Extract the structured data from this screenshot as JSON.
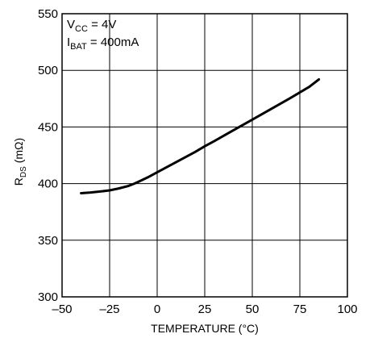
{
  "chart_data": {
    "type": "line",
    "title": "",
    "xlabel": "TEMPERATURE (°C)",
    "ylabel": {
      "main": "R",
      "sub": "DS",
      "unit": " (mΩ)"
    },
    "xlim": [
      -50,
      100
    ],
    "ylim": [
      300,
      550
    ],
    "xticks": [
      -50,
      -25,
      0,
      25,
      50,
      75,
      100
    ],
    "yticks": [
      300,
      350,
      400,
      450,
      500,
      550
    ],
    "xtick_labels": [
      "–50",
      "–25",
      "0",
      "25",
      "50",
      "75",
      "100"
    ],
    "ytick_labels": [
      "300",
      "350",
      "400",
      "450",
      "500",
      "550"
    ],
    "grid": true,
    "legend": "none",
    "annotations": [
      {
        "main": "V",
        "sub": "CC",
        "rest": " = 4V"
      },
      {
        "main": "I",
        "sub": "BAT",
        "rest": " = 400mA"
      }
    ],
    "series": [
      {
        "color": "#000000",
        "x": [
          -40,
          -35,
          -30,
          -25,
          -20,
          -15,
          -12,
          -10,
          -5,
          0,
          10,
          20,
          25,
          30,
          40,
          50,
          60,
          70,
          75,
          80,
          85
        ],
        "y": [
          391.5,
          392.2,
          393.0,
          394.0,
          395.8,
          398.0,
          400.0,
          401.5,
          405.5,
          410.0,
          419.0,
          428.0,
          433.0,
          437.5,
          447.0,
          456.5,
          466.0,
          475.5,
          480.5,
          485.5,
          492.0
        ]
      }
    ]
  }
}
